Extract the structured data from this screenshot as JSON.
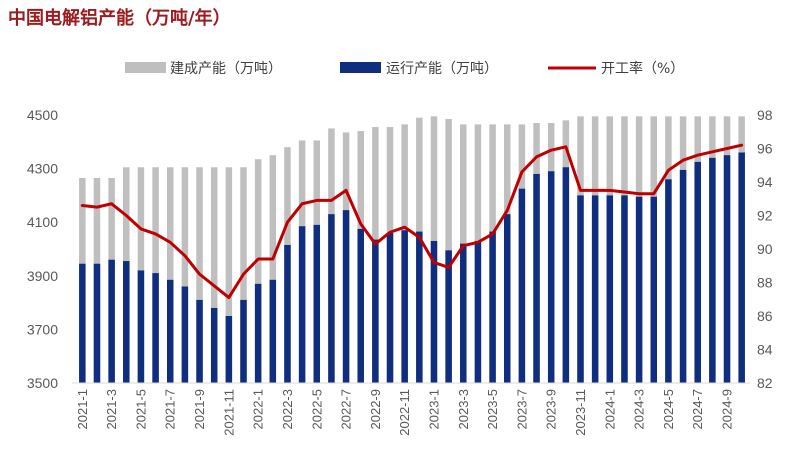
{
  "chart_data": {
    "type": "bar",
    "title": "中国电解铝产能（万吨/年）",
    "categories": [
      "2021-1",
      "",
      "2021-3",
      "",
      "2021-5",
      "",
      "2021-7",
      "",
      "2021-9",
      "",
      "2021-11",
      "",
      "2022-1",
      "",
      "2022-3",
      "",
      "2022-5",
      "",
      "2022-7",
      "",
      "2022-9",
      "",
      "2022-11",
      "",
      "2023-1",
      "",
      "2023-3",
      "",
      "2023-5",
      "",
      "2023-7",
      "",
      "2023-9",
      "",
      "2023-11",
      "",
      "2024-1",
      "",
      "2024-3",
      "",
      "2024-5",
      "",
      "2024-7",
      "",
      "2024-9",
      ""
    ],
    "series": [
      {
        "name": "建成产能（万吨）",
        "type": "bar",
        "axis": "left",
        "color": "#BFBFBF",
        "values": [
          4265,
          4265,
          4265,
          4305,
          4305,
          4305,
          4305,
          4305,
          4305,
          4305,
          4305,
          4305,
          4335,
          4350,
          4380,
          4405,
          4405,
          4450,
          4435,
          4440,
          4455,
          4455,
          4465,
          4490,
          4495,
          4485,
          4465,
          4465,
          4465,
          4465,
          4465,
          4470,
          4470,
          4480,
          4495,
          4495,
          4495,
          4495,
          4495,
          4495,
          4495,
          4495,
          4495,
          4495,
          4495,
          4495
        ]
      },
      {
        "name": "运行产能（万吨）",
        "type": "bar",
        "axis": "left",
        "color": "#102E80",
        "values": [
          3945,
          3945,
          3960,
          3955,
          3920,
          3910,
          3885,
          3860,
          3810,
          3780,
          3750,
          3810,
          3870,
          3885,
          4015,
          4085,
          4090,
          4130,
          4145,
          4075,
          4035,
          4060,
          4070,
          4065,
          4030,
          3995,
          4020,
          4030,
          4065,
          4130,
          4225,
          4280,
          4290,
          4305,
          4200,
          4200,
          4200,
          4200,
          4195,
          4195,
          4260,
          4295,
          4325,
          4340,
          4350,
          4360
        ]
      },
      {
        "name": "开工率（%）",
        "type": "line",
        "axis": "right",
        "color": "#C00000",
        "values": [
          92.6,
          92.5,
          92.7,
          92.0,
          91.2,
          90.9,
          90.4,
          89.6,
          88.5,
          87.8,
          87.1,
          88.5,
          89.4,
          89.4,
          91.6,
          92.7,
          92.9,
          92.9,
          93.5,
          91.5,
          90.3,
          91.0,
          91.3,
          90.7,
          89.2,
          88.9,
          90.2,
          90.4,
          90.9,
          92.3,
          94.6,
          95.5,
          95.9,
          96.1,
          93.5,
          93.5,
          93.5,
          93.4,
          93.3,
          93.3,
          94.7,
          95.3,
          95.6,
          95.8,
          96.0,
          96.2
        ]
      }
    ],
    "y_left": {
      "range": [
        3500,
        4500
      ],
      "ticks": [
        3500,
        3700,
        3900,
        4100,
        4300,
        4500
      ]
    },
    "y_right": {
      "range": [
        82,
        98
      ],
      "ticks": [
        82,
        84,
        86,
        88,
        90,
        92,
        94,
        96,
        98
      ]
    },
    "grid": false,
    "legend_position": "top"
  },
  "colors": {
    "title": "#9B1B1E",
    "axis_line": "#D9D9D9"
  }
}
